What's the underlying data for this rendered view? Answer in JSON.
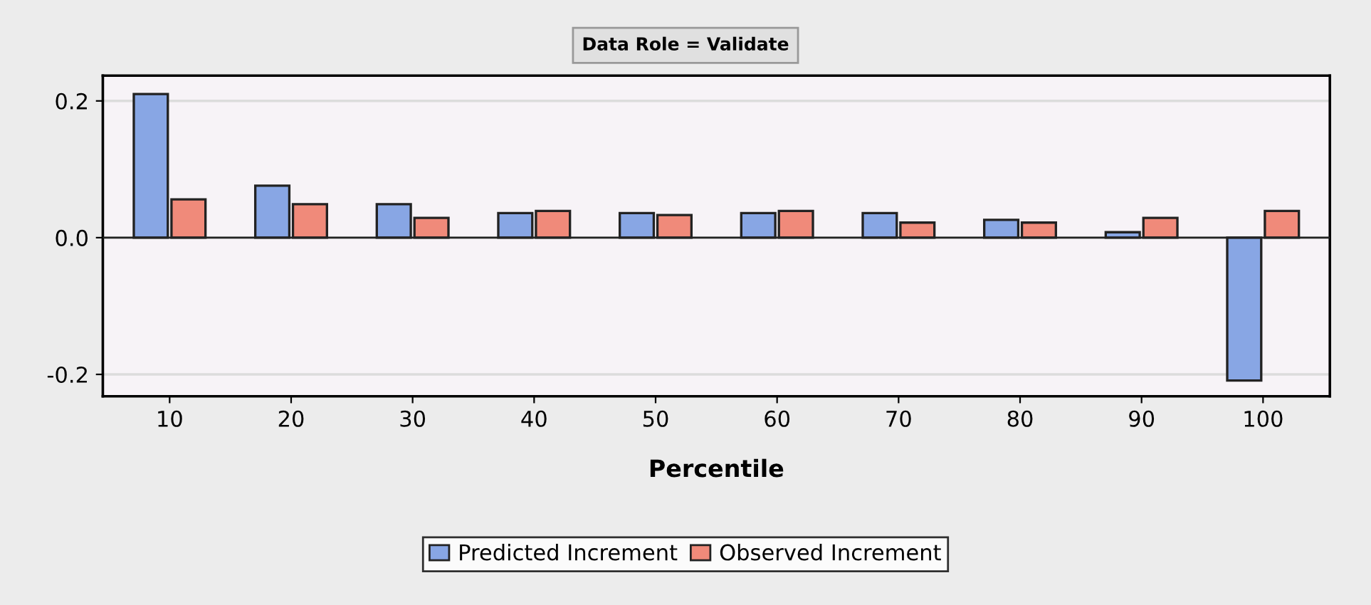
{
  "chart_data": {
    "type": "bar",
    "title": "Data Role = Validate",
    "xlabel": "Percentile",
    "categories": [
      "10",
      "20",
      "30",
      "40",
      "50",
      "60",
      "70",
      "80",
      "90",
      "100"
    ],
    "series": [
      {
        "name": "Predicted Increment",
        "color": "#88a6e4",
        "values": [
          0.21,
          0.076,
          0.049,
          0.036,
          0.036,
          0.036,
          0.036,
          0.026,
          0.008,
          -0.209
        ]
      },
      {
        "name": "Observed Increment",
        "color": "#f08a7a",
        "values": [
          0.056,
          0.049,
          0.029,
          0.039,
          0.033,
          0.039,
          0.022,
          0.022,
          0.029,
          0.039
        ]
      }
    ],
    "ylim": [
      -0.232,
      0.237
    ],
    "yticks": [
      {
        "value": -0.2,
        "label": "-0.2"
      },
      {
        "value": 0.0,
        "label": "0.0"
      },
      {
        "value": 0.2,
        "label": "0.2"
      }
    ],
    "grid": "y",
    "legend": "bottom"
  }
}
